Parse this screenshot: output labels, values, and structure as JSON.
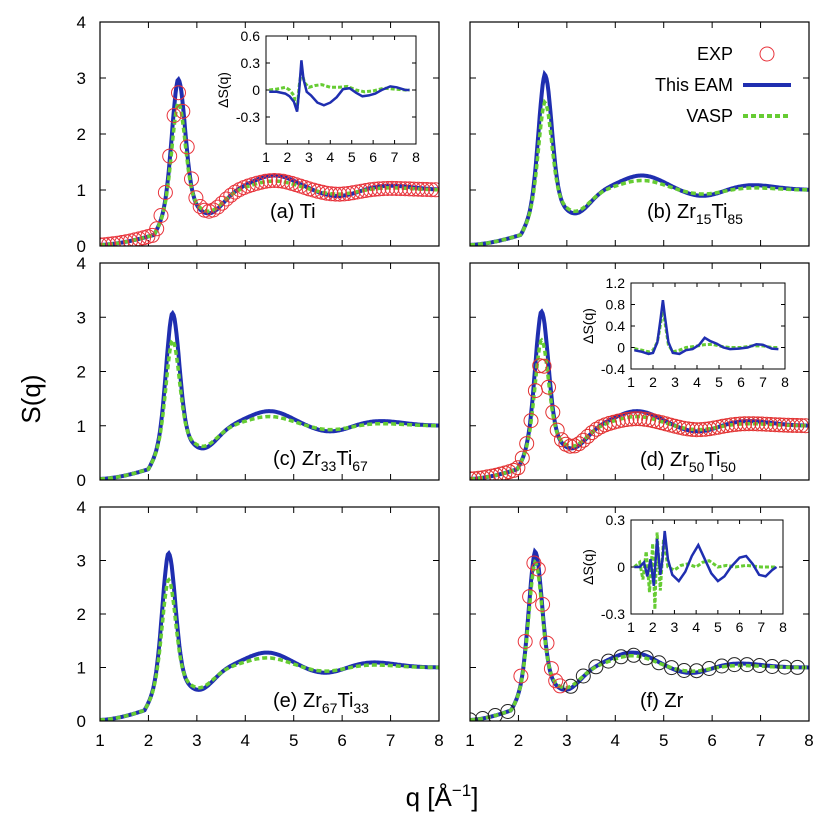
{
  "colors": {
    "exp": "#e8333b",
    "eam": "#1f2eb0",
    "vasp": "#66cc33",
    "exp_d": "#e23030",
    "exp_f": "#222222"
  },
  "axis_titles": {
    "x": "q [Å",
    "x_sup": "−1",
    "x_close": "]",
    "y": "S(q)"
  },
  "chart_data": {
    "type": "line",
    "legend": {
      "placement": "panel-b top-right",
      "entries": [
        {
          "key": "exp",
          "label": "EXP",
          "style": "open-circle"
        },
        {
          "key": "eam",
          "label": "This EAM",
          "style": "solid"
        },
        {
          "key": "vasp",
          "label": "VASP",
          "style": "dashed"
        }
      ]
    },
    "xlim": [
      1,
      8
    ],
    "xticks": [
      1,
      2,
      3,
      4,
      5,
      6,
      7,
      8
    ],
    "panels": [
      {
        "id": "a",
        "label_main": "(a) Ti",
        "label_parts": [],
        "ylim": [
          0,
          4
        ],
        "yticks": [
          0,
          1,
          2,
          3,
          4
        ],
        "show_y_ticklabels": true,
        "show_x_ticklabels": false,
        "exp_points": true,
        "exp_color_key": "exp",
        "peak": {
          "q": 2.62,
          "eam": 3.02,
          "vasp": 2.6,
          "exp": 2.75
        },
        "second_peak": {
          "q": 4.6,
          "eam": 1.26,
          "vasp": 1.16,
          "exp": 1.17
        },
        "third_peak": {
          "q": 6.95,
          "eam": 1.08,
          "vasp": 1.04,
          "exp": 1.03
        },
        "inset": {
          "ylim": [
            -0.6,
            0.6
          ],
          "yticks": [
            -0.6,
            -0.3,
            0,
            0.3,
            0.6
          ],
          "ytick_labels": [
            "",
            "-0.3",
            "0",
            "0.3",
            "0.6"
          ],
          "xlim": [
            1,
            8
          ],
          "xticks": [
            1,
            2,
            3,
            4,
            5,
            6,
            7,
            8
          ],
          "ylabel": "ΔS(q)",
          "eam_points": [
            [
              1.15,
              -0.02
            ],
            [
              1.5,
              -0.02
            ],
            [
              1.9,
              -0.04
            ],
            [
              2.1,
              -0.07
            ],
            [
              2.3,
              -0.13
            ],
            [
              2.45,
              -0.24
            ],
            [
              2.55,
              0.0
            ],
            [
              2.65,
              0.33
            ],
            [
              2.75,
              0.12
            ],
            [
              2.9,
              -0.02
            ],
            [
              3.1,
              -0.06
            ],
            [
              3.4,
              -0.14
            ],
            [
              3.7,
              -0.17
            ],
            [
              4.0,
              -0.14
            ],
            [
              4.3,
              -0.08
            ],
            [
              4.6,
              0.01
            ],
            [
              4.9,
              0.02
            ],
            [
              5.2,
              -0.03
            ],
            [
              5.5,
              -0.07
            ],
            [
              5.8,
              -0.06
            ],
            [
              6.1,
              -0.04
            ],
            [
              6.4,
              0.0
            ],
            [
              6.8,
              0.04
            ],
            [
              7.1,
              0.03
            ],
            [
              7.5,
              0.0
            ],
            [
              7.7,
              0.0
            ]
          ],
          "vasp_points": [
            [
              1.15,
              0.0
            ],
            [
              1.5,
              0.01
            ],
            [
              1.9,
              0.03
            ],
            [
              2.1,
              0.0
            ],
            [
              2.3,
              -0.06
            ],
            [
              2.45,
              -0.22
            ],
            [
              2.55,
              0.05
            ],
            [
              2.65,
              0.22
            ],
            [
              2.8,
              0.08
            ],
            [
              3.0,
              0.03
            ],
            [
              3.3,
              0.05
            ],
            [
              3.6,
              0.06
            ],
            [
              4.0,
              0.03
            ],
            [
              4.4,
              0.03
            ],
            [
              4.8,
              0.04
            ],
            [
              5.2,
              0.0
            ],
            [
              5.6,
              -0.02
            ],
            [
              6.0,
              -0.01
            ],
            [
              6.5,
              0.02
            ],
            [
              7.0,
              0.01
            ],
            [
              7.5,
              0.0
            ],
            [
              7.7,
              0.0
            ]
          ]
        }
      },
      {
        "id": "b",
        "label_main": "(b) Zr",
        "label_parts": [
          {
            "t": "(b) Zr",
            "sub": false
          },
          {
            "t": "15",
            "sub": true
          },
          {
            "t": "Ti",
            "sub": false
          },
          {
            "t": "85",
            "sub": true
          }
        ],
        "ylim": [
          0,
          4
        ],
        "yticks": [
          0,
          1,
          2,
          3,
          4
        ],
        "show_y_ticklabels": false,
        "show_x_ticklabels": false,
        "exp_points": false,
        "peak": {
          "q": 2.55,
          "eam": 3.1,
          "vasp": 2.6
        },
        "second_peak": {
          "q": 4.55,
          "eam": 1.26,
          "vasp": 1.17
        },
        "third_peak": {
          "q": 6.8,
          "eam": 1.09,
          "vasp": 1.04
        }
      },
      {
        "id": "c",
        "label_main": "(c) Zr",
        "label_parts": [
          {
            "t": "(c) Zr",
            "sub": false
          },
          {
            "t": "33",
            "sub": true
          },
          {
            "t": "Ti",
            "sub": false
          },
          {
            "t": "67",
            "sub": true
          }
        ],
        "ylim": [
          0,
          4
        ],
        "yticks": [
          0,
          1,
          2,
          3,
          4
        ],
        "show_y_ticklabels": true,
        "show_x_ticklabels": false,
        "exp_points": false,
        "peak": {
          "q": 2.5,
          "eam": 3.12,
          "vasp": 2.62
        },
        "second_peak": {
          "q": 4.5,
          "eam": 1.27,
          "vasp": 1.17
        },
        "third_peak": {
          "q": 6.75,
          "eam": 1.09,
          "vasp": 1.04
        }
      },
      {
        "id": "d",
        "label_main": "(d) Zr",
        "label_parts": [
          {
            "t": "(d) Zr",
            "sub": false
          },
          {
            "t": "50",
            "sub": true
          },
          {
            "t": "Ti",
            "sub": false
          },
          {
            "t": "50",
            "sub": true
          }
        ],
        "ylim": [
          0,
          4
        ],
        "yticks": [
          0,
          1,
          2,
          3,
          4
        ],
        "show_y_ticklabels": false,
        "show_x_ticklabels": false,
        "exp_points": true,
        "exp_color_key": "exp_d",
        "peak": {
          "q": 2.48,
          "eam": 3.15,
          "vasp": 2.62,
          "exp": 2.22
        },
        "second_peak": {
          "q": 4.45,
          "eam": 1.27,
          "vasp": 1.17,
          "exp": 1.13
        },
        "third_peak": {
          "q": 6.7,
          "eam": 1.09,
          "vasp": 1.04,
          "exp": 1.04
        },
        "inset": {
          "ylim": [
            -0.4,
            1.2
          ],
          "yticks": [
            -0.4,
            0,
            0.4,
            0.8,
            1.2
          ],
          "ytick_labels": [
            "-0.4",
            "0",
            "0.4",
            "0.8",
            "1.2"
          ],
          "xlim": [
            1,
            8
          ],
          "xticks": [
            1,
            2,
            3,
            4,
            5,
            6,
            7,
            8
          ],
          "ylabel": "ΔS(q)",
          "eam_points": [
            [
              1.15,
              -0.05
            ],
            [
              1.5,
              -0.08
            ],
            [
              1.8,
              -0.12
            ],
            [
              2.0,
              -0.1
            ],
            [
              2.2,
              0.1
            ],
            [
              2.35,
              0.55
            ],
            [
              2.45,
              0.88
            ],
            [
              2.55,
              0.55
            ],
            [
              2.7,
              0.1
            ],
            [
              2.9,
              -0.1
            ],
            [
              3.2,
              -0.12
            ],
            [
              3.5,
              -0.05
            ],
            [
              3.8,
              -0.03
            ],
            [
              4.1,
              0.05
            ],
            [
              4.35,
              0.18
            ],
            [
              4.6,
              0.12
            ],
            [
              4.9,
              0.07
            ],
            [
              5.2,
              0.0
            ],
            [
              5.5,
              -0.03
            ],
            [
              5.9,
              -0.02
            ],
            [
              6.3,
              0.0
            ],
            [
              6.7,
              0.06
            ],
            [
              7.0,
              0.05
            ],
            [
              7.4,
              -0.02
            ],
            [
              7.7,
              -0.03
            ]
          ],
          "vasp_points": [
            [
              1.15,
              -0.02
            ],
            [
              1.5,
              -0.05
            ],
            [
              1.8,
              -0.08
            ],
            [
              2.0,
              -0.05
            ],
            [
              2.2,
              0.1
            ],
            [
              2.35,
              0.45
            ],
            [
              2.45,
              0.73
            ],
            [
              2.55,
              0.45
            ],
            [
              2.7,
              0.05
            ],
            [
              2.9,
              -0.08
            ],
            [
              3.2,
              -0.05
            ],
            [
              3.5,
              0.0
            ],
            [
              3.9,
              0.02
            ],
            [
              4.3,
              0.05
            ],
            [
              4.7,
              0.06
            ],
            [
              5.1,
              0.02
            ],
            [
              5.5,
              0.0
            ],
            [
              6.0,
              0.0
            ],
            [
              6.5,
              0.03
            ],
            [
              7.0,
              0.03
            ],
            [
              7.4,
              0.0
            ],
            [
              7.7,
              0.0
            ]
          ]
        }
      },
      {
        "id": "e",
        "label_main": "(e) Zr",
        "label_parts": [
          {
            "t": "(e) Zr",
            "sub": false
          },
          {
            "t": "67",
            "sub": true
          },
          {
            "t": "Ti",
            "sub": false
          },
          {
            "t": "33",
            "sub": true
          }
        ],
        "ylim": [
          0,
          4
        ],
        "yticks": [
          0,
          1,
          2,
          3,
          4
        ],
        "show_y_ticklabels": true,
        "show_x_ticklabels": true,
        "exp_points": false,
        "peak": {
          "q": 2.42,
          "eam": 3.18,
          "vasp": 2.68
        },
        "second_peak": {
          "q": 4.45,
          "eam": 1.28,
          "vasp": 1.18
        },
        "third_peak": {
          "q": 6.6,
          "eam": 1.1,
          "vasp": 1.05
        }
      },
      {
        "id": "f",
        "label_main": "(f) Zr",
        "label_parts": [],
        "ylim": [
          0,
          4
        ],
        "yticks": [
          0,
          1,
          2,
          3,
          4
        ],
        "show_y_ticklabels": false,
        "show_x_ticklabels": true,
        "exp_points": true,
        "exp_color_key": "exp_f",
        "peak": {
          "q": 2.35,
          "eam": 3.2,
          "vasp": 3.0,
          "exp": 3.05
        },
        "second_peak": {
          "q": 4.35,
          "eam": 1.28,
          "vasp": 1.22,
          "exp": 1.23
        },
        "third_peak": {
          "q": 6.5,
          "eam": 1.08,
          "vasp": 1.04,
          "exp": 1.06
        },
        "inset": {
          "ylim": [
            -0.3,
            0.3
          ],
          "yticks": [
            -0.3,
            0,
            0.3
          ],
          "ytick_labels": [
            "-0.3",
            "0",
            "0.3"
          ],
          "xlim": [
            1,
            8
          ],
          "xticks": [
            1,
            2,
            3,
            4,
            5,
            6,
            7,
            8
          ],
          "ylabel": "ΔS(q)",
          "eam_points": [
            [
              1.15,
              0.0
            ],
            [
              1.4,
              0.0
            ],
            [
              1.6,
              0.03
            ],
            [
              1.75,
              -0.06
            ],
            [
              1.9,
              0.05
            ],
            [
              2.05,
              -0.12
            ],
            [
              2.2,
              0.18
            ],
            [
              2.35,
              -0.05
            ],
            [
              2.45,
              0.05
            ],
            [
              2.55,
              0.23
            ],
            [
              2.7,
              0.05
            ],
            [
              2.9,
              -0.05
            ],
            [
              3.2,
              -0.09
            ],
            [
              3.5,
              -0.03
            ],
            [
              3.8,
              0.07
            ],
            [
              4.1,
              0.14
            ],
            [
              4.4,
              0.05
            ],
            [
              4.7,
              -0.04
            ],
            [
              5.0,
              -0.09
            ],
            [
              5.3,
              -0.06
            ],
            [
              5.6,
              0.0
            ],
            [
              6.0,
              0.06
            ],
            [
              6.3,
              0.07
            ],
            [
              6.6,
              0.02
            ],
            [
              6.9,
              -0.05
            ],
            [
              7.2,
              -0.06
            ],
            [
              7.5,
              -0.02
            ],
            [
              7.7,
              0.0
            ]
          ],
          "vasp_points": [
            [
              1.15,
              0.0
            ],
            [
              1.4,
              0.03
            ],
            [
              1.55,
              -0.08
            ],
            [
              1.7,
              0.1
            ],
            [
              1.85,
              -0.16
            ],
            [
              2.0,
              0.15
            ],
            [
              2.1,
              -0.27
            ],
            [
              2.2,
              0.22
            ],
            [
              2.35,
              -0.15
            ],
            [
              2.5,
              0.18
            ],
            [
              2.7,
              0.0
            ],
            [
              3.0,
              -0.02
            ],
            [
              3.3,
              0.01
            ],
            [
              3.6,
              0.02
            ],
            [
              4.0,
              0.0
            ],
            [
              4.3,
              0.03
            ],
            [
              4.6,
              0.04
            ],
            [
              5.0,
              0.0
            ],
            [
              5.4,
              0.01
            ],
            [
              5.8,
              0.0
            ],
            [
              6.3,
              0.01
            ],
            [
              7.0,
              0.0
            ],
            [
              7.7,
              0.0
            ]
          ]
        }
      }
    ]
  }
}
